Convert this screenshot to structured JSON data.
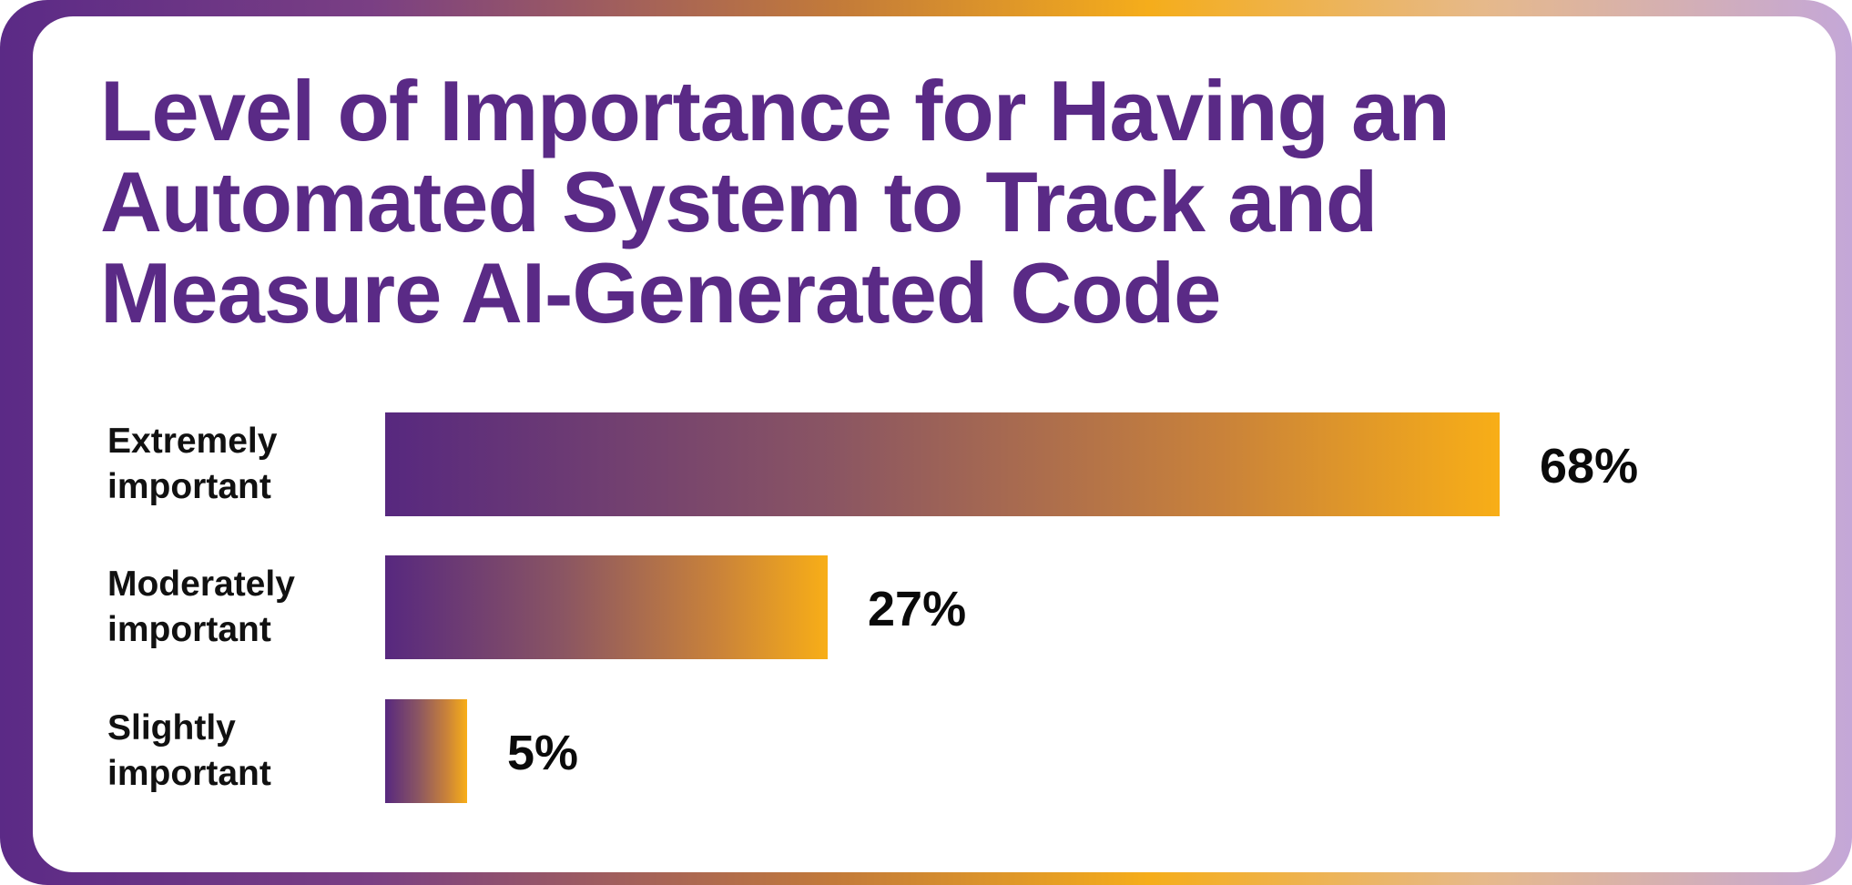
{
  "chart_data": {
    "type": "bar",
    "orientation": "horizontal",
    "title": "Level of Importance for Having an Automated System to Track and Measure AI-Generated Code",
    "categories": [
      "Extremely\nimportant",
      "Moderately\nimportant",
      "Slightly\nimportant"
    ],
    "values": [
      68,
      27,
      5
    ],
    "value_labels": [
      "68%",
      "27%",
      "5%"
    ],
    "xlim": [
      0,
      100
    ],
    "grid": false,
    "legend": "none",
    "colors": {
      "title": "#5a2a86",
      "bar_start": "#57287f",
      "bar_end": "#f8ae17"
    }
  }
}
